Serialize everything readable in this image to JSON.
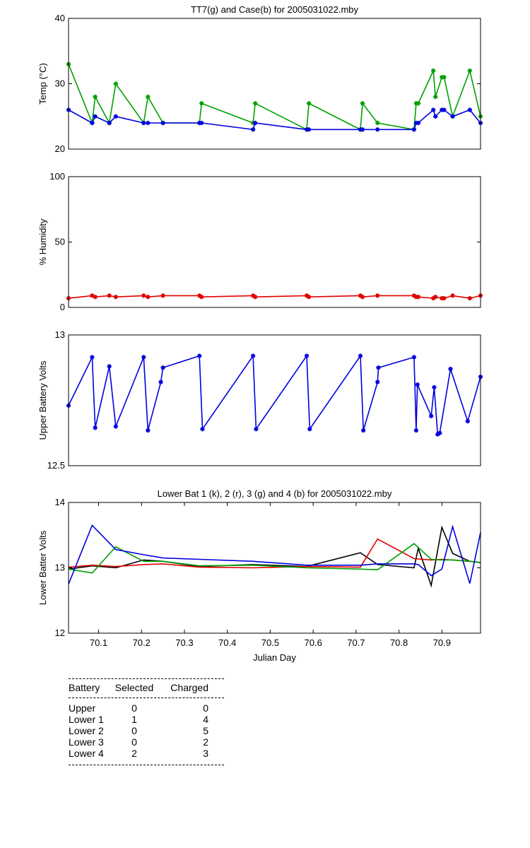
{
  "chart_data": [
    {
      "type": "line",
      "title": "TT7(g) and Case(b) for 2005031022.mby",
      "ylabel": "Temp  (°C)",
      "xlabel": "",
      "xlim": [
        70.03,
        70.99
      ],
      "ylim": [
        20,
        40
      ],
      "yticks": [
        "20",
        "30",
        "40"
      ],
      "xticks": [],
      "series": [
        {
          "name": "TT7",
          "color": "#00a000",
          "marker": true,
          "x": [
            70.03,
            70.085,
            70.092,
            70.125,
            70.14,
            70.205,
            70.215,
            70.25,
            70.335,
            70.34,
            70.46,
            70.465,
            70.585,
            70.59,
            70.71,
            70.715,
            70.75,
            70.835,
            70.84,
            70.845,
            70.88,
            70.885,
            70.9,
            70.905,
            70.925,
            70.965,
            70.99
          ],
          "y": [
            33,
            24,
            28,
            24,
            30,
            24,
            28,
            24,
            24,
            27,
            24,
            27,
            23,
            27,
            23,
            27,
            24,
            23,
            27,
            27,
            32,
            28,
            31,
            31,
            25,
            32,
            25
          ]
        },
        {
          "name": "Case",
          "color": "#0000e0",
          "marker": true,
          "x": [
            70.03,
            70.085,
            70.092,
            70.125,
            70.14,
            70.205,
            70.215,
            70.25,
            70.335,
            70.34,
            70.46,
            70.465,
            70.585,
            70.59,
            70.71,
            70.715,
            70.75,
            70.835,
            70.84,
            70.845,
            70.88,
            70.885,
            70.9,
            70.905,
            70.925,
            70.965,
            70.99
          ],
          "y": [
            26,
            24,
            25,
            24,
            25,
            24,
            24,
            24,
            24,
            24,
            23,
            24,
            23,
            23,
            23,
            23,
            23,
            23,
            24,
            24,
            26,
            25,
            26,
            26,
            25,
            26,
            24
          ]
        }
      ]
    },
    {
      "type": "line",
      "title": "",
      "ylabel": "% Humidity",
      "xlabel": "",
      "xlim": [
        70.03,
        70.99
      ],
      "ylim": [
        0,
        100
      ],
      "yticks": [
        "0",
        "50",
        "100"
      ],
      "xticks": [],
      "series": [
        {
          "name": "Humidity",
          "color": "#e00000",
          "marker": true,
          "x": [
            70.03,
            70.085,
            70.092,
            70.125,
            70.14,
            70.205,
            70.215,
            70.25,
            70.335,
            70.34,
            70.46,
            70.465,
            70.585,
            70.59,
            70.71,
            70.715,
            70.75,
            70.835,
            70.84,
            70.845,
            70.88,
            70.885,
            70.9,
            70.905,
            70.925,
            70.965,
            70.99
          ],
          "y": [
            7,
            9,
            8,
            9,
            8,
            9,
            8,
            9,
            9,
            8,
            9,
            8,
            9,
            8,
            9,
            8,
            9,
            9,
            8,
            8,
            7,
            8,
            7,
            7,
            9,
            7,
            9
          ]
        }
      ]
    },
    {
      "type": "line",
      "title": "",
      "ylabel": "Upper Battery Volts",
      "xlabel": "",
      "xlim": [
        70.03,
        70.99
      ],
      "ylim": [
        12.5,
        13
      ],
      "yticks": [
        "12.5",
        "13"
      ],
      "xticks": [],
      "series": [
        {
          "name": "Upper",
          "color": "#0000e0",
          "marker": true,
          "x": [
            70.03,
            70.085,
            70.092,
            70.125,
            70.14,
            70.205,
            70.215,
            70.245,
            70.25,
            70.335,
            70.342,
            70.46,
            70.467,
            70.585,
            70.592,
            70.71,
            70.717,
            70.75,
            70.752,
            70.835,
            70.84,
            70.843,
            70.875,
            70.882,
            70.89,
            70.895,
            70.92,
            70.96,
            70.99
          ],
          "y": [
            12.73,
            12.915,
            12.645,
            12.88,
            12.65,
            12.915,
            12.635,
            12.82,
            12.875,
            12.92,
            12.64,
            12.92,
            12.64,
            12.92,
            12.64,
            12.92,
            12.635,
            12.82,
            12.875,
            12.915,
            12.635,
            12.81,
            12.69,
            12.8,
            12.62,
            12.625,
            12.87,
            12.67,
            12.84
          ]
        }
      ]
    },
    {
      "type": "line",
      "title": "Lower Bat 1 (k), 2 (r), 3 (g) and 4 (b) for 2005031022.mby",
      "ylabel": "Lower Batter Volts",
      "xlabel": "Julian Day",
      "xlim": [
        70.03,
        70.99
      ],
      "ylim": [
        12,
        14
      ],
      "yticks": [
        "12",
        "13",
        "14"
      ],
      "xticks": [
        "70.1",
        "70.2",
        "70.3",
        "70.4",
        "70.5",
        "70.6",
        "70.7",
        "70.8",
        "70.9"
      ],
      "series": [
        {
          "name": "1 (k)",
          "color": "#000000",
          "marker": false,
          "x": [
            70.03,
            70.085,
            70.14,
            70.205,
            70.25,
            70.335,
            70.46,
            70.585,
            70.71,
            70.75,
            70.835,
            70.845,
            70.875,
            70.9,
            70.925,
            70.965,
            70.99
          ],
          "y": [
            12.98,
            13.03,
            13,
            13.12,
            13.1,
            13.02,
            13.05,
            13.02,
            13.23,
            13.05,
            13,
            13.3,
            12.73,
            13.62,
            13.22,
            13.1,
            13.08
          ]
        },
        {
          "name": "2 (r)",
          "color": "#e00000",
          "marker": false,
          "x": [
            70.03,
            70.085,
            70.14,
            70.205,
            70.25,
            70.335,
            70.46,
            70.585,
            70.71,
            70.75,
            70.835,
            70.875,
            70.9,
            70.925,
            70.965,
            70.99
          ],
          "y": [
            13.01,
            13.04,
            13.02,
            13.05,
            13.06,
            13.01,
            13.0,
            13.02,
            13.01,
            13.44,
            13.14,
            13.12,
            13.13,
            13.12,
            13.1,
            13.08
          ]
        },
        {
          "name": "3 (g)",
          "color": "#00a000",
          "marker": false,
          "x": [
            70.03,
            70.085,
            70.14,
            70.205,
            70.25,
            70.335,
            70.46,
            70.585,
            70.71,
            70.75,
            70.835,
            70.875,
            70.9,
            70.925,
            70.965,
            70.99
          ],
          "y": [
            12.98,
            12.92,
            13.32,
            13.1,
            13.1,
            13.03,
            13.04,
            13.0,
            12.98,
            12.97,
            13.37,
            13.13,
            13.12,
            13.12,
            13.1,
            13.08
          ]
        },
        {
          "name": "4 (b)",
          "color": "#0000e0",
          "marker": false,
          "x": [
            70.03,
            70.085,
            70.14,
            70.205,
            70.25,
            70.335,
            70.46,
            70.585,
            70.71,
            70.75,
            70.835,
            70.845,
            70.875,
            70.9,
            70.925,
            70.965,
            70.99
          ],
          "y": [
            12.75,
            13.65,
            13.28,
            13.2,
            13.15,
            13.13,
            13.1,
            13.04,
            13.04,
            13.06,
            13.06,
            13.05,
            12.88,
            12.98,
            13.63,
            12.76,
            13.54
          ]
        }
      ]
    }
  ],
  "legend_table": {
    "headers": {
      "battery": "Battery",
      "selected": "Selected",
      "charged": "Charged"
    },
    "rows": [
      {
        "battery": "Upper",
        "selected": "0",
        "charged": "0"
      },
      {
        "battery": "Lower 1",
        "selected": "1",
        "charged": "4"
      },
      {
        "battery": "Lower 2",
        "selected": "0",
        "charged": "5"
      },
      {
        "battery": "Lower 3",
        "selected": "0",
        "charged": "2"
      },
      {
        "battery": "Lower 4",
        "selected": "2",
        "charged": "3"
      }
    ]
  }
}
